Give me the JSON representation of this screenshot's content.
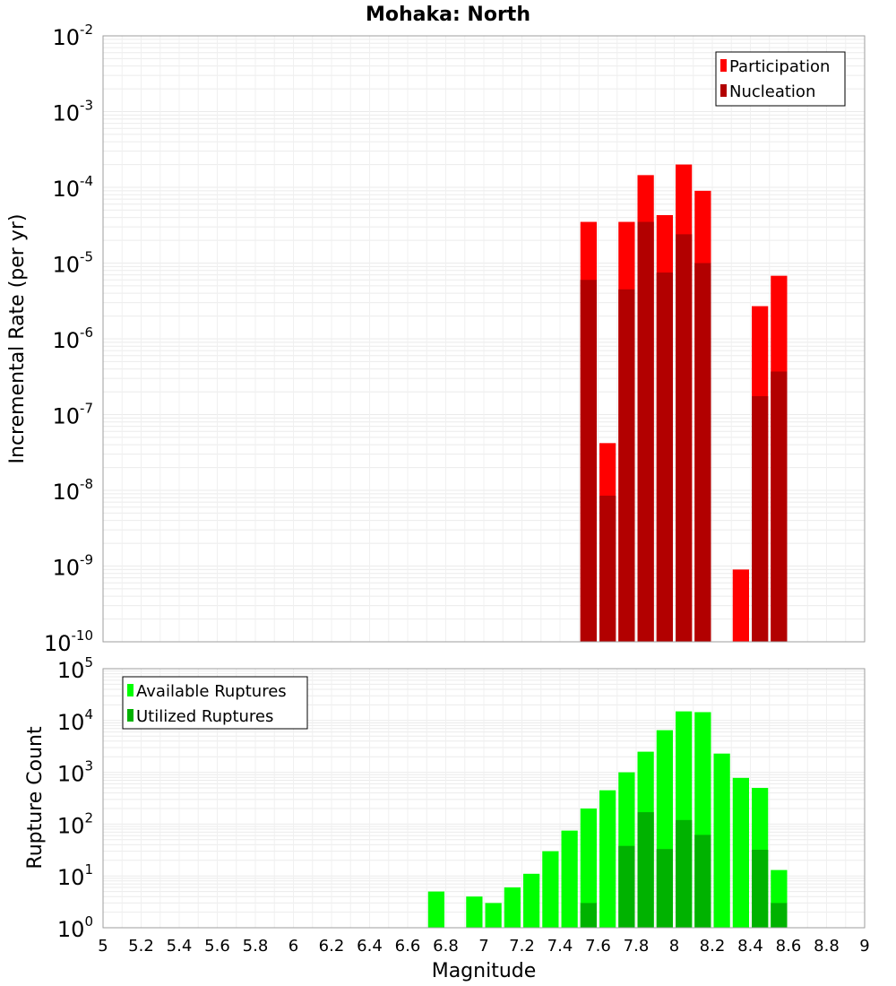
{
  "title": "Mohaka: North",
  "xlabel": "Magnitude",
  "colors": {
    "participation": "#ff0000",
    "nucleation": "#b20000",
    "available": "#00ff00",
    "utilized": "#00b200"
  },
  "chart_data": [
    {
      "type": "bar",
      "panel": "top",
      "ylabel": "Incremental Rate (per yr)",
      "yscale": "log",
      "ylim": [
        1e-10,
        0.01
      ],
      "xlim": [
        5,
        9
      ],
      "grid": true,
      "legend_position": "top-right",
      "bin_width": 0.1,
      "x": [
        7.55,
        7.65,
        7.75,
        7.85,
        7.95,
        8.05,
        8.15,
        8.35,
        8.45,
        8.55
      ],
      "series": [
        {
          "name": "Participation",
          "values": [
            3.5e-05,
            4.2e-08,
            3.5e-05,
            0.000145,
            4.3e-05,
            0.0002,
            9e-05,
            9e-10,
            2.7e-06,
            6.8e-06
          ]
        },
        {
          "name": "Nucleation",
          "values": [
            6e-06,
            8.5e-09,
            4.5e-06,
            3.5e-05,
            7.5e-06,
            2.4e-05,
            1e-05,
            null,
            1.75e-07,
            3.7e-07
          ]
        }
      ]
    },
    {
      "type": "bar",
      "panel": "bottom",
      "ylabel": "Rupture Count",
      "yscale": "log",
      "ylim": [
        1,
        100000.0
      ],
      "xlim": [
        5,
        9
      ],
      "grid": true,
      "legend_position": "top-left",
      "bin_width": 0.1,
      "x": [
        6.75,
        6.95,
        7.05,
        7.15,
        7.25,
        7.35,
        7.45,
        7.55,
        7.65,
        7.75,
        7.85,
        7.95,
        8.05,
        8.15,
        8.25,
        8.35,
        8.45,
        8.55
      ],
      "series": [
        {
          "name": "Available Ruptures",
          "values": [
            5,
            4,
            3,
            6,
            11,
            30,
            75,
            200,
            450,
            1000,
            2500,
            6500,
            15000,
            14500,
            2300,
            780,
            500,
            13
          ]
        },
        {
          "name": "Utilized Ruptures",
          "values": [
            null,
            null,
            null,
            null,
            null,
            null,
            null,
            3,
            1,
            38,
            170,
            33,
            120,
            62,
            null,
            1,
            32,
            3
          ]
        }
      ]
    }
  ],
  "x_ticks": [
    "5",
    "5.2",
    "5.4",
    "5.6",
    "5.8",
    "6",
    "6.2",
    "6.4",
    "6.6",
    "6.8",
    "7",
    "7.2",
    "7.4",
    "7.6",
    "7.8",
    "8",
    "8.2",
    "8.4",
    "8.6",
    "8.8",
    "9"
  ],
  "top_y_exponents": [
    "-2",
    "-3",
    "-4",
    "-5",
    "-6",
    "-7",
    "-8",
    "-9",
    "-10"
  ],
  "bottom_y_exponents": [
    "5",
    "4",
    "3",
    "2",
    "1",
    "0"
  ],
  "y_tick_base": "10"
}
